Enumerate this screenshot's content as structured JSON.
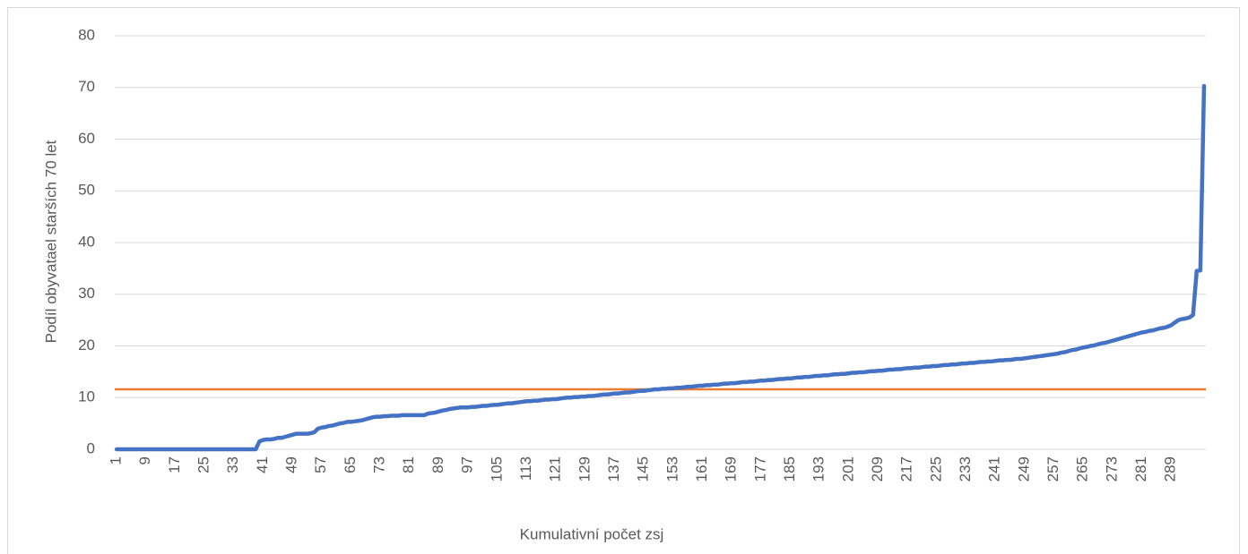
{
  "chart_data": {
    "type": "line",
    "y_label": "Podíl obyvatael starších 70 let",
    "x_label": "Kumulativní počet zsj",
    "categories": [
      1,
      null,
      null,
      null,
      null,
      null,
      null,
      null,
      9,
      null,
      null,
      null,
      null,
      null,
      null,
      null,
      17,
      null,
      null,
      null,
      null,
      null,
      null,
      null,
      25,
      null,
      null,
      null,
      null,
      null,
      null,
      null,
      33,
      null,
      null,
      null,
      null,
      null,
      null,
      null,
      41,
      null,
      null,
      null,
      null,
      null,
      null,
      null,
      49,
      null,
      null,
      null,
      null,
      null,
      null,
      null,
      57,
      null,
      null,
      null,
      null,
      null,
      null,
      null,
      65,
      null,
      null,
      null,
      null,
      null,
      null,
      null,
      73,
      null,
      null,
      null,
      null,
      null,
      null,
      null,
      81,
      null,
      null,
      null,
      null,
      null,
      null,
      null,
      89,
      null,
      null,
      null,
      null,
      null,
      null,
      null,
      97,
      null,
      null,
      null,
      null,
      null,
      null,
      null,
      105,
      null,
      null,
      null,
      null,
      null,
      null,
      null,
      113,
      null,
      null,
      null,
      null,
      null,
      null,
      null,
      121,
      null,
      null,
      null,
      null,
      null,
      null,
      null,
      129,
      null,
      null,
      null,
      null,
      null,
      null,
      null,
      137,
      null,
      null,
      null,
      null,
      null,
      null,
      null,
      145,
      null,
      null,
      null,
      null,
      null,
      null,
      null,
      153,
      null,
      null,
      null,
      null,
      null,
      null,
      null,
      161,
      null,
      null,
      null,
      null,
      null,
      null,
      null,
      169,
      null,
      null,
      null,
      null,
      null,
      null,
      null,
      177,
      null,
      null,
      null,
      null,
      null,
      null,
      null,
      185,
      null,
      null,
      null,
      null,
      null,
      null,
      null,
      193,
      null,
      null,
      null,
      null,
      null,
      null,
      null,
      201,
      null,
      null,
      null,
      null,
      null,
      null,
      null,
      209,
      null,
      null,
      null,
      null,
      null,
      null,
      null,
      217,
      null,
      null,
      null,
      null,
      null,
      null,
      null,
      225,
      null,
      null,
      null,
      null,
      null,
      null,
      null,
      233,
      null,
      null,
      null,
      null,
      null,
      null,
      null,
      241,
      null,
      null,
      null,
      null,
      null,
      null,
      null,
      249,
      null,
      null,
      null,
      null,
      null,
      null,
      null,
      257,
      null,
      null,
      null,
      null,
      null,
      null,
      null,
      265,
      null,
      null,
      null,
      null,
      null,
      null,
      null,
      273,
      null,
      null,
      null,
      null,
      null,
      null,
      null,
      281,
      null,
      null,
      null,
      null,
      null,
      null,
      null,
      289,
      null,
      null,
      null,
      null,
      null,
      null,
      null,
      null,
      null
    ],
    "series": [
      {
        "color": "#4472c4",
        "values": [
          0,
          0,
          0,
          0,
          0,
          0,
          0,
          0,
          0,
          0,
          0,
          0,
          0,
          0,
          0,
          0,
          0,
          0,
          0,
          0,
          0,
          0,
          0,
          0,
          0,
          0,
          0,
          0,
          0,
          0,
          0,
          0,
          0,
          0,
          0,
          0,
          0,
          0,
          0,
          1.5,
          1.8,
          1.9,
          1.9,
          2.0,
          2.2,
          2.2,
          2.4,
          2.6,
          2.8,
          3.0,
          3.0,
          3.0,
          3.0,
          3.1,
          3.3,
          4.0,
          4.2,
          4.3,
          4.5,
          4.6,
          4.8,
          5.0,
          5.1,
          5.3,
          5.3,
          5.4,
          5.5,
          5.6,
          5.8,
          6.0,
          6.2,
          6.3,
          6.3,
          6.4,
          6.4,
          6.5,
          6.5,
          6.5,
          6.6,
          6.6,
          6.6,
          6.6,
          6.6,
          6.6,
          6.6,
          6.9,
          7.0,
          7.1,
          7.3,
          7.5,
          7.6,
          7.8,
          7.9,
          8.0,
          8.1,
          8.1,
          8.1,
          8.2,
          8.2,
          8.3,
          8.4,
          8.4,
          8.5,
          8.6,
          8.6,
          8.7,
          8.8,
          8.9,
          8.9,
          9.0,
          9.1,
          9.2,
          9.3,
          9.3,
          9.4,
          9.4,
          9.5,
          9.6,
          9.6,
          9.7,
          9.7,
          9.8,
          9.9,
          10.0,
          10.0,
          10.1,
          10.1,
          10.2,
          10.2,
          10.3,
          10.3,
          10.4,
          10.5,
          10.6,
          10.6,
          10.7,
          10.8,
          10.8,
          10.9,
          11.0,
          11.0,
          11.1,
          11.2,
          11.3,
          11.3,
          11.4,
          11.5,
          11.6,
          11.6,
          11.7,
          11.7,
          11.8,
          11.8,
          11.9,
          11.9,
          12.0,
          12.1,
          12.1,
          12.2,
          12.3,
          12.3,
          12.4,
          12.4,
          12.5,
          12.5,
          12.6,
          12.7,
          12.7,
          12.8,
          12.8,
          12.9,
          13.0,
          13.0,
          13.1,
          13.1,
          13.2,
          13.3,
          13.3,
          13.4,
          13.4,
          13.5,
          13.6,
          13.6,
          13.7,
          13.7,
          13.8,
          13.9,
          13.9,
          14.0,
          14.0,
          14.1,
          14.2,
          14.2,
          14.3,
          14.3,
          14.4,
          14.5,
          14.5,
          14.6,
          14.6,
          14.7,
          14.8,
          14.8,
          14.9,
          14.9,
          15.0,
          15.1,
          15.1,
          15.2,
          15.2,
          15.3,
          15.4,
          15.4,
          15.5,
          15.5,
          15.6,
          15.7,
          15.7,
          15.8,
          15.8,
          15.9,
          16.0,
          16.0,
          16.1,
          16.1,
          16.2,
          16.3,
          16.3,
          16.4,
          16.4,
          16.5,
          16.6,
          16.6,
          16.7,
          16.7,
          16.8,
          16.9,
          16.9,
          17.0,
          17.0,
          17.1,
          17.2,
          17.2,
          17.3,
          17.3,
          17.4,
          17.5,
          17.5,
          17.6,
          17.7,
          17.8,
          17.9,
          18.0,
          18.1,
          18.2,
          18.3,
          18.4,
          18.5,
          18.7,
          18.8,
          19.0,
          19.2,
          19.3,
          19.5,
          19.7,
          19.8,
          20.0,
          20.1,
          20.3,
          20.5,
          20.6,
          20.8,
          21.0,
          21.2,
          21.4,
          21.6,
          21.8,
          22.0,
          22.2,
          22.4,
          22.6,
          22.7,
          22.9,
          23.0,
          23.2,
          23.4,
          23.5,
          23.7,
          24.0,
          24.5,
          25.0,
          25.2,
          25.3,
          25.5,
          26.0,
          34.5,
          34.6,
          70.3
        ]
      }
    ],
    "hline": {
      "value": 11.6,
      "color": "#ed7d31"
    },
    "ylim": [
      0,
      80
    ],
    "yticks": [
      0,
      10,
      20,
      30,
      40,
      50,
      60,
      70,
      80
    ],
    "grid": true
  }
}
